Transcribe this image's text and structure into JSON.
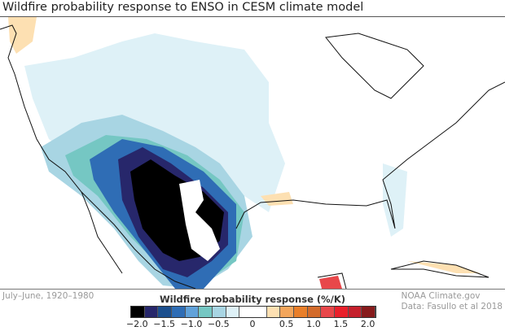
{
  "title": "Wildfire probability response to ENSO in CESM climate model",
  "period": "July–June, 1920–1980",
  "colorbar": {
    "title": "Wildfire probability response (%/K)",
    "colors": [
      "#000000",
      "#27276b",
      "#1b4f8e",
      "#2f6db5",
      "#61a2da",
      "#75c7c3",
      "#a8d5e3",
      "#def1f7",
      "#ffffff",
      "#fde0b2",
      "#f3a65c",
      "#e97f2a",
      "#d36b2b",
      "#e8474a",
      "#ea202b",
      "#c5202c",
      "#871b1c"
    ],
    "ticks": [
      "−2.0",
      "−1.5",
      "−1.0",
      "−0.5",
      "0",
      "0.5",
      "1.0",
      "1.5",
      "2.0"
    ],
    "range": [
      -2.0,
      2.0
    ]
  },
  "credit": {
    "line1": "NOAA Climate.gov",
    "line2": "Data: Fasullo et al 2018"
  }
}
